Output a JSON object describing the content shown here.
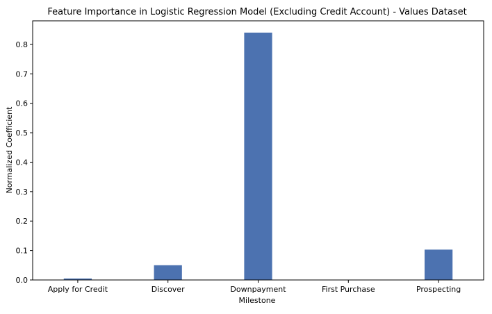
{
  "chart_data": {
    "type": "bar",
    "title": "Feature Importance in Logistic Regression Model (Excluding Credit Account) - Values Dataset",
    "xlabel": "Milestone",
    "ylabel": "Normalized Coefficient",
    "categories": [
      "Apply for Credit",
      "Discover",
      "Downpayment",
      "First Purchase",
      "Prospecting"
    ],
    "values": [
      0.005,
      0.05,
      0.84,
      0.0,
      0.103
    ],
    "ylim": [
      0,
      0.88
    ],
    "yticks": [
      0.0,
      0.1,
      0.2,
      0.3,
      0.4,
      0.5,
      0.6,
      0.7,
      0.8
    ],
    "ytick_labels": [
      "0.0",
      "0.1",
      "0.2",
      "0.3",
      "0.4",
      "0.5",
      "0.6",
      "0.7",
      "0.8"
    ],
    "grid": false,
    "bar_color": "#4c72b0"
  }
}
